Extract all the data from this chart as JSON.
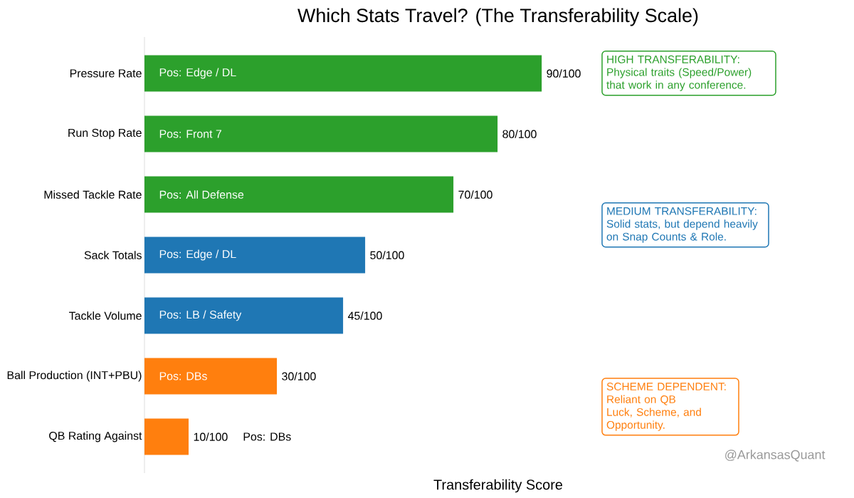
{
  "chart_data": {
    "type": "bar",
    "orientation": "horizontal",
    "title": "Which Stats Travel? (The Transferability Scale)",
    "xlabel": "Transferability Score",
    "categories": [
      "Pressure Rate",
      "Run Stop Rate",
      "Missed Tackle Rate",
      "Sack Totals",
      "Tackle Volume",
      "Ball Production (INT+PBU)",
      "QB Rating Against"
    ],
    "values": [
      90,
      80,
      70,
      50,
      45,
      30,
      10
    ],
    "value_labels": [
      "90/100",
      "80/100",
      "70/100",
      "50/100",
      "45/100",
      "30/100",
      "10/100"
    ],
    "colors": [
      "#2ca02c",
      "#2ca02c",
      "#2ca02c",
      "#1f77b4",
      "#1f77b4",
      "#ff7f0e",
      "#ff7f0e"
    ],
    "tick_labels": "y",
    "grid": false,
    "annotations": [
      "Pos: Edge / DL",
      "Pos: Front 7",
      "Pos: All Defense",
      "Pos: Edge / DL",
      "Pos: LB / Safety",
      "Pos: DBs",
      "Pos: DBs",
      "HIGH TRANSFERABILITY: Physical traits (Speed/Power) that work in any conference.",
      "MEDIUM TRANSFERABILITY: Solid stats, but depend heavily on Snap Counts & Role.",
      "SCHEME DEPENDENT: Reliant on QB Luck, Scheme, and Opportunity.",
      "@ArkansasQuant"
    ]
  }
}
